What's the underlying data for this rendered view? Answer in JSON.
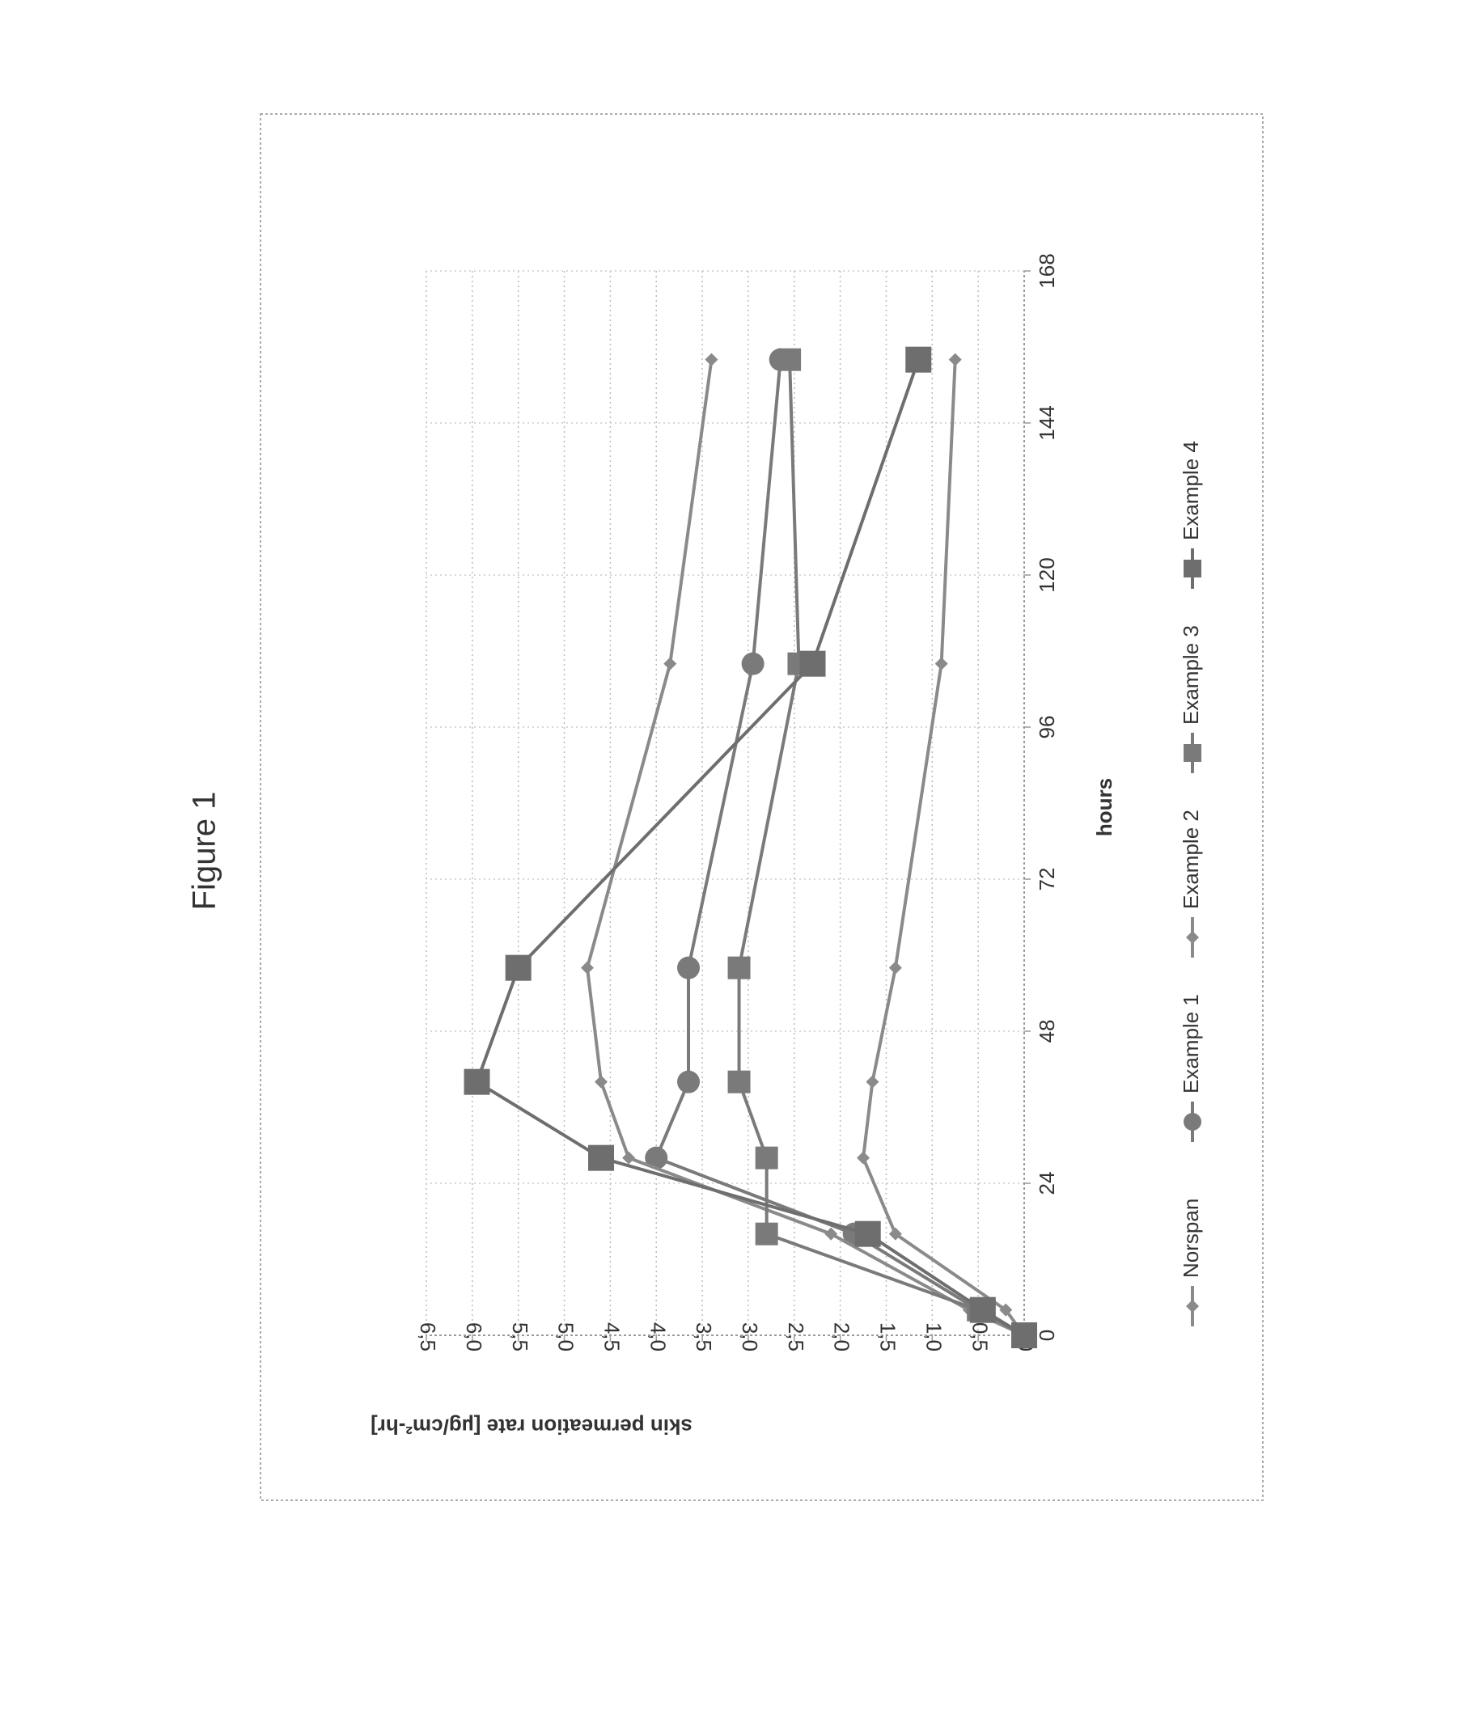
{
  "chart_data": {
    "type": "line",
    "figure_title": "Figure 1",
    "xlabel": "hours",
    "ylabel": "skin permeation rate [µg/cm²-hr]",
    "x": [
      0,
      4,
      16,
      28,
      40,
      58,
      106,
      154
    ],
    "xlim": [
      0,
      168
    ],
    "xticks": [
      0,
      24,
      48,
      72,
      96,
      120,
      144,
      168
    ],
    "ylim": [
      0,
      6.5
    ],
    "yticks": [
      {
        "value": 0,
        "label": "0,0"
      },
      {
        "value": 0.5,
        "label": "0,5"
      },
      {
        "value": 1,
        "label": "1,0"
      },
      {
        "value": 1.5,
        "label": "1,5"
      },
      {
        "value": 2,
        "label": "2,0"
      },
      {
        "value": 2.5,
        "label": "2,5"
      },
      {
        "value": 3,
        "label": "3,0"
      },
      {
        "value": 3.5,
        "label": "3,5"
      },
      {
        "value": 4,
        "label": "4,0"
      },
      {
        "value": 4.5,
        "label": "4,5"
      },
      {
        "value": 5,
        "label": "5,0"
      },
      {
        "value": 5.5,
        "label": "5,5"
      },
      {
        "value": 6,
        "label": "6,0"
      },
      {
        "value": 6.5,
        "label": "6,5"
      }
    ],
    "grid": true,
    "series": [
      {
        "name": "Norspan",
        "color": "#8a8a8a",
        "marker": "diamond",
        "values": [
          0,
          0.2,
          1.4,
          1.75,
          1.65,
          1.4,
          0.9,
          0.75
        ]
      },
      {
        "name": "Example 1",
        "color": "#7a7a7a",
        "marker": "circle",
        "values": [
          0,
          0.5,
          1.85,
          4.0,
          3.65,
          3.65,
          2.95,
          2.65
        ]
      },
      {
        "name": "Example 2",
        "color": "#8a8a8a",
        "marker": "diamond",
        "values": [
          0,
          0.6,
          2.1,
          4.3,
          4.6,
          4.75,
          3.85,
          3.4
        ]
      },
      {
        "name": "Example 3",
        "color": "#7a7a7a",
        "marker": "square",
        "values": [
          0,
          0.5,
          2.8,
          2.8,
          3.1,
          3.1,
          2.45,
          2.55
        ]
      },
      {
        "name": "Example 4",
        "color": "#6e6e6e",
        "marker": "square",
        "values": [
          0,
          0.45,
          1.7,
          4.6,
          5.95,
          5.5,
          2.3,
          1.15
        ]
      }
    ]
  }
}
